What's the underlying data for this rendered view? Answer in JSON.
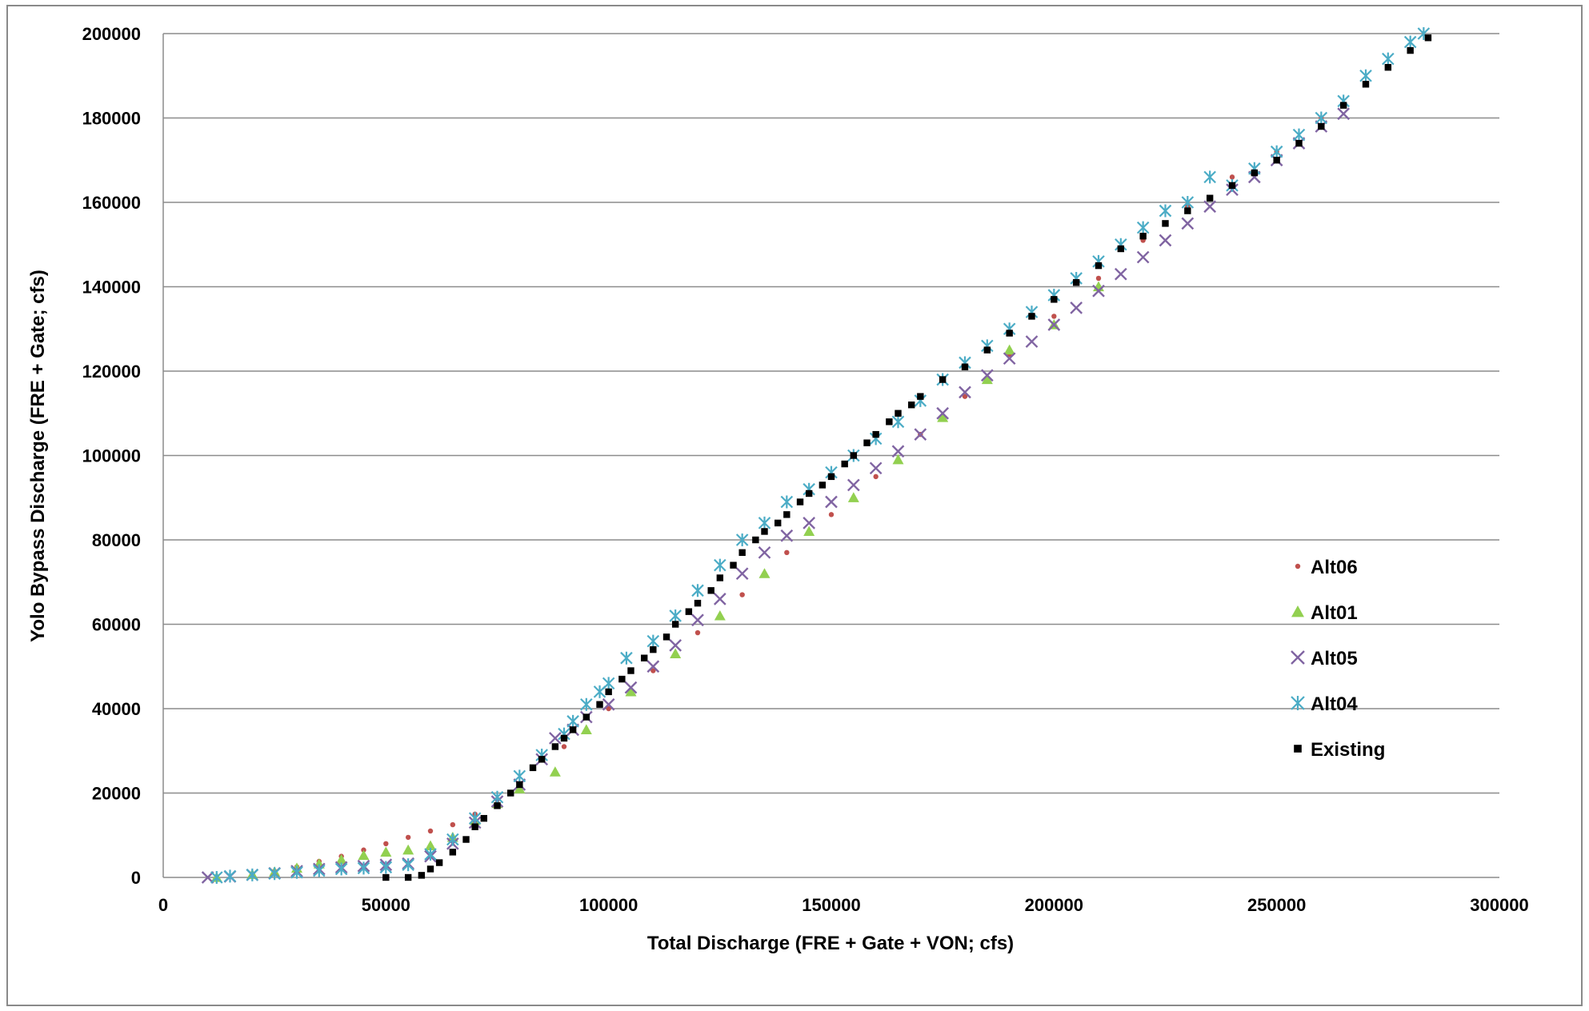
{
  "chart_data": {
    "type": "scatter",
    "title": "",
    "xlabel": "Total Discharge (FRE + Gate + VON; cfs)",
    "ylabel": "Yolo Bypass Discharge (FRE + Gate; cfs)",
    "xlim": [
      0,
      300000
    ],
    "ylim": [
      0,
      200000
    ],
    "x_ticks": [
      "0",
      "50000",
      "100000",
      "150000",
      "200000",
      "250000",
      "300000"
    ],
    "y_ticks": [
      "0",
      "20000",
      "40000",
      "60000",
      "80000",
      "100000",
      "120000",
      "140000",
      "160000",
      "180000",
      "200000"
    ],
    "grid": "horizontal",
    "legend_position": "right",
    "series": [
      {
        "name": "Alt06",
        "color": "#c0504d",
        "marker": "dot",
        "points": [
          [
            12000,
            0
          ],
          [
            20000,
            800
          ],
          [
            25000,
            1500
          ],
          [
            30000,
            2500
          ],
          [
            35000,
            3800
          ],
          [
            40000,
            5000
          ],
          [
            45000,
            6500
          ],
          [
            50000,
            8000
          ],
          [
            55000,
            9500
          ],
          [
            60000,
            11000
          ],
          [
            65000,
            12500
          ],
          [
            70000,
            15000
          ],
          [
            75000,
            18500
          ],
          [
            80000,
            22000
          ],
          [
            90000,
            31000
          ],
          [
            100000,
            40000
          ],
          [
            110000,
            49000
          ],
          [
            120000,
            58000
          ],
          [
            130000,
            67000
          ],
          [
            140000,
            77000
          ],
          [
            150000,
            86000
          ],
          [
            160000,
            95000
          ],
          [
            170000,
            105000
          ],
          [
            180000,
            114000
          ],
          [
            190000,
            124000
          ],
          [
            200000,
            133000
          ],
          [
            210000,
            142000
          ],
          [
            220000,
            151000
          ],
          [
            230000,
            159000
          ],
          [
            240000,
            166000
          ],
          [
            250000,
            172000
          ],
          [
            260000,
            180000
          ],
          [
            270000,
            188000
          ],
          [
            280000,
            196000
          ]
        ]
      },
      {
        "name": "Alt01",
        "color": "#92d050",
        "marker": "triangle",
        "points": [
          [
            12000,
            0
          ],
          [
            20000,
            700
          ],
          [
            25000,
            1300
          ],
          [
            30000,
            2200
          ],
          [
            35000,
            3200
          ],
          [
            40000,
            4200
          ],
          [
            45000,
            5200
          ],
          [
            50000,
            6000
          ],
          [
            55000,
            6500
          ],
          [
            60000,
            7500
          ],
          [
            65000,
            9500
          ],
          [
            70000,
            13500
          ],
          [
            75000,
            17500
          ],
          [
            80000,
            21000
          ],
          [
            88000,
            25000
          ],
          [
            95000,
            35000
          ],
          [
            105000,
            44000
          ],
          [
            115000,
            53000
          ],
          [
            125000,
            62000
          ],
          [
            135000,
            72000
          ],
          [
            145000,
            82000
          ],
          [
            155000,
            90000
          ],
          [
            165000,
            99000
          ],
          [
            175000,
            109000
          ],
          [
            185000,
            118000
          ],
          [
            190000,
            125000
          ],
          [
            200000,
            131000
          ],
          [
            210000,
            140000
          ]
        ]
      },
      {
        "name": "Alt05",
        "color": "#8064a2",
        "marker": "x",
        "points": [
          [
            10000,
            0
          ],
          [
            15000,
            200
          ],
          [
            20000,
            600
          ],
          [
            25000,
            1000
          ],
          [
            30000,
            1500
          ],
          [
            35000,
            2000
          ],
          [
            40000,
            2400
          ],
          [
            45000,
            2700
          ],
          [
            50000,
            3000
          ],
          [
            55000,
            3300
          ],
          [
            60000,
            5000
          ],
          [
            65000,
            8000
          ],
          [
            70000,
            13000
          ],
          [
            75000,
            18000
          ],
          [
            80000,
            22000
          ],
          [
            85000,
            28000
          ],
          [
            88000,
            33000
          ],
          [
            92000,
            35000
          ],
          [
            95000,
            38000
          ],
          [
            100000,
            41000
          ],
          [
            105000,
            45000
          ],
          [
            110000,
            50000
          ],
          [
            115000,
            55000
          ],
          [
            120000,
            61000
          ],
          [
            125000,
            66000
          ],
          [
            130000,
            72000
          ],
          [
            135000,
            77000
          ],
          [
            140000,
            81000
          ],
          [
            145000,
            84000
          ],
          [
            150000,
            89000
          ],
          [
            155000,
            93000
          ],
          [
            160000,
            97000
          ],
          [
            165000,
            101000
          ],
          [
            170000,
            105000
          ],
          [
            175000,
            110000
          ],
          [
            180000,
            115000
          ],
          [
            185000,
            119000
          ],
          [
            190000,
            123000
          ],
          [
            195000,
            127000
          ],
          [
            200000,
            131000
          ],
          [
            205000,
            135000
          ],
          [
            210000,
            139000
          ],
          [
            215000,
            143000
          ],
          [
            220000,
            147000
          ],
          [
            225000,
            151000
          ],
          [
            230000,
            155000
          ],
          [
            235000,
            159000
          ],
          [
            240000,
            163000
          ],
          [
            245000,
            166000
          ],
          [
            250000,
            170000
          ],
          [
            255000,
            174000
          ],
          [
            260000,
            178000
          ],
          [
            265000,
            181000
          ]
        ]
      },
      {
        "name": "Alt04",
        "color": "#4bacc6",
        "marker": "asterisk",
        "points": [
          [
            12000,
            0
          ],
          [
            15000,
            300
          ],
          [
            20000,
            600
          ],
          [
            25000,
            900
          ],
          [
            30000,
            1200
          ],
          [
            35000,
            1600
          ],
          [
            40000,
            2000
          ],
          [
            45000,
            2200
          ],
          [
            50000,
            2400
          ],
          [
            55000,
            3000
          ],
          [
            60000,
            5500
          ],
          [
            65000,
            9000
          ],
          [
            70000,
            14000
          ],
          [
            75000,
            19000
          ],
          [
            80000,
            24000
          ],
          [
            85000,
            29000
          ],
          [
            90000,
            34000
          ],
          [
            92000,
            37000
          ],
          [
            95000,
            41000
          ],
          [
            98000,
            44000
          ],
          [
            100000,
            46000
          ],
          [
            104000,
            52000
          ],
          [
            110000,
            56000
          ],
          [
            115000,
            62000
          ],
          [
            120000,
            68000
          ],
          [
            125000,
            74000
          ],
          [
            130000,
            80000
          ],
          [
            135000,
            84000
          ],
          [
            140000,
            89000
          ],
          [
            145000,
            92000
          ],
          [
            150000,
            96000
          ],
          [
            155000,
            100000
          ],
          [
            160000,
            104000
          ],
          [
            165000,
            108000
          ],
          [
            170000,
            113000
          ],
          [
            175000,
            118000
          ],
          [
            180000,
            122000
          ],
          [
            185000,
            126000
          ],
          [
            190000,
            130000
          ],
          [
            195000,
            134000
          ],
          [
            200000,
            138000
          ],
          [
            205000,
            142000
          ],
          [
            210000,
            146000
          ],
          [
            215000,
            150000
          ],
          [
            220000,
            154000
          ],
          [
            225000,
            158000
          ],
          [
            230000,
            160000
          ],
          [
            235000,
            166000
          ],
          [
            240000,
            164000
          ],
          [
            245000,
            168000
          ],
          [
            250000,
            172000
          ],
          [
            255000,
            176000
          ],
          [
            260000,
            180000
          ],
          [
            265000,
            184000
          ],
          [
            270000,
            190000
          ],
          [
            275000,
            194000
          ],
          [
            280000,
            198000
          ],
          [
            283000,
            200000
          ]
        ]
      },
      {
        "name": "Existing",
        "color": "#000000",
        "marker": "square",
        "points": [
          [
            50000,
            0
          ],
          [
            55000,
            0
          ],
          [
            58000,
            500
          ],
          [
            60000,
            2000
          ],
          [
            62000,
            3500
          ],
          [
            65000,
            6000
          ],
          [
            68000,
            9000
          ],
          [
            70000,
            12000
          ],
          [
            72000,
            14000
          ],
          [
            75000,
            17000
          ],
          [
            78000,
            20000
          ],
          [
            80000,
            22000
          ],
          [
            83000,
            26000
          ],
          [
            85000,
            28000
          ],
          [
            88000,
            31000
          ],
          [
            90000,
            33000
          ],
          [
            92000,
            35000
          ],
          [
            95000,
            38000
          ],
          [
            98000,
            41000
          ],
          [
            100000,
            44000
          ],
          [
            103000,
            47000
          ],
          [
            105000,
            49000
          ],
          [
            108000,
            52000
          ],
          [
            110000,
            54000
          ],
          [
            113000,
            57000
          ],
          [
            115000,
            60000
          ],
          [
            118000,
            63000
          ],
          [
            120000,
            65000
          ],
          [
            123000,
            68000
          ],
          [
            125000,
            71000
          ],
          [
            128000,
            74000
          ],
          [
            130000,
            77000
          ],
          [
            133000,
            80000
          ],
          [
            135000,
            82000
          ],
          [
            138000,
            84000
          ],
          [
            140000,
            86000
          ],
          [
            143000,
            89000
          ],
          [
            145000,
            91000
          ],
          [
            148000,
            93000
          ],
          [
            150000,
            95000
          ],
          [
            153000,
            98000
          ],
          [
            155000,
            100000
          ],
          [
            158000,
            103000
          ],
          [
            160000,
            105000
          ],
          [
            163000,
            108000
          ],
          [
            165000,
            110000
          ],
          [
            168000,
            112000
          ],
          [
            170000,
            114000
          ],
          [
            175000,
            118000
          ],
          [
            180000,
            121000
          ],
          [
            185000,
            125000
          ],
          [
            190000,
            129000
          ],
          [
            195000,
            133000
          ],
          [
            200000,
            137000
          ],
          [
            205000,
            141000
          ],
          [
            210000,
            145000
          ],
          [
            215000,
            149000
          ],
          [
            220000,
            152000
          ],
          [
            225000,
            155000
          ],
          [
            230000,
            158000
          ],
          [
            235000,
            161000
          ],
          [
            240000,
            164000
          ],
          [
            245000,
            167000
          ],
          [
            250000,
            170000
          ],
          [
            255000,
            174000
          ],
          [
            260000,
            178000
          ],
          [
            265000,
            183000
          ],
          [
            270000,
            188000
          ],
          [
            275000,
            192000
          ],
          [
            280000,
            196000
          ],
          [
            284000,
            199000
          ]
        ]
      }
    ]
  }
}
